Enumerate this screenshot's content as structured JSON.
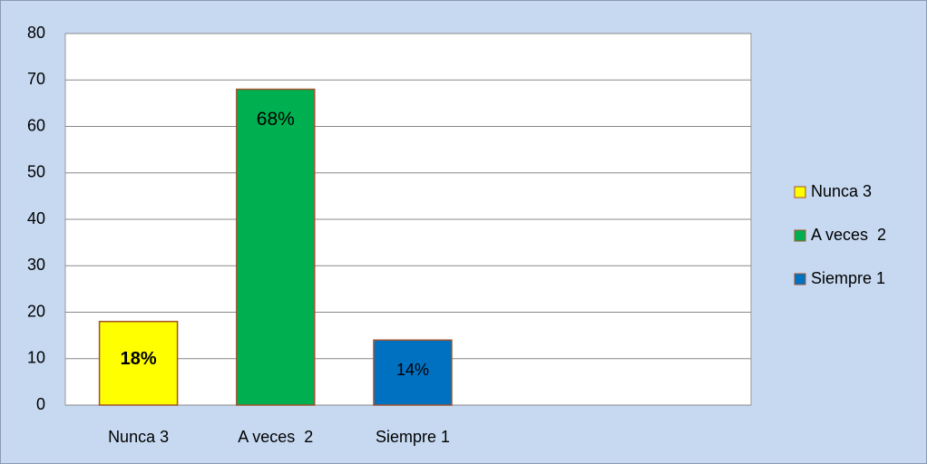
{
  "chart_data": {
    "type": "bar",
    "categories": [
      "Nunca 3",
      "A veces  2",
      "Siempre 1",
      null,
      null
    ],
    "values": [
      18,
      68,
      14,
      null,
      null
    ],
    "value_labels": [
      "18%",
      "68%",
      "14%",
      null,
      null
    ],
    "colors": [
      "#ffff00",
      "#00b050",
      "#0070c0",
      null,
      null
    ],
    "ylim": [
      0,
      80
    ],
    "yticks": [
      0,
      10,
      20,
      30,
      40,
      50,
      60,
      70,
      80
    ],
    "grid": true,
    "legend": "right"
  }
}
